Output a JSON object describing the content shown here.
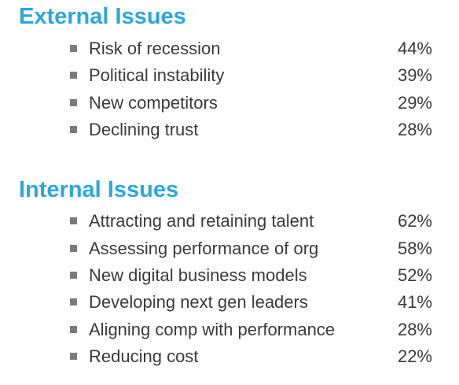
{
  "external": {
    "title": "External Issues",
    "items": [
      {
        "label": "Risk of recession",
        "value": "44%"
      },
      {
        "label": "Political instability",
        "value": "39%"
      },
      {
        "label": "New competitors",
        "value": "29%"
      },
      {
        "label": "Declining trust",
        "value": "28%"
      }
    ]
  },
  "internal": {
    "title": "Internal Issues",
    "items": [
      {
        "label": "Attracting and retaining talent",
        "value": "62%"
      },
      {
        "label": "Assessing performance of org",
        "value": "58%"
      },
      {
        "label": "New digital business models",
        "value": "52%"
      },
      {
        "label": "Developing next gen leaders",
        "value": "41%"
      },
      {
        "label": "Aligning comp with performance",
        "value": "28%"
      },
      {
        "label": "Reducing cost",
        "value": "22%"
      }
    ]
  },
  "colors": {
    "heading": "#2aa7df",
    "text": "#3a3a3a",
    "bullet": "#7a7a7a"
  }
}
